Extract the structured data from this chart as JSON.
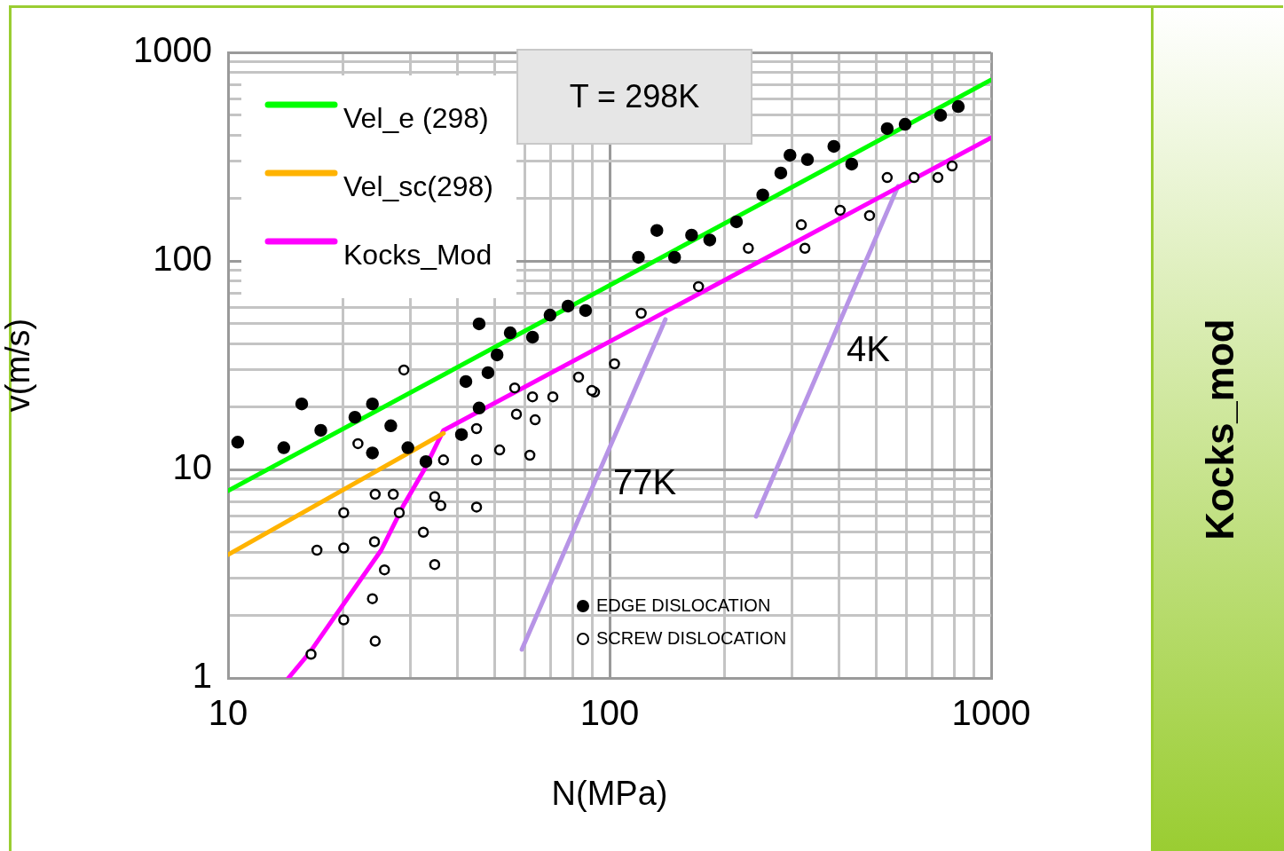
{
  "chart_data": {
    "type": "scatter",
    "xlabel": "N(MPa)",
    "ylabel": "v(m/s)",
    "log": "xy",
    "grid": true,
    "legend": "left",
    "xlim": [
      10,
      1000
    ],
    "ylim": [
      1,
      1000
    ],
    "xticks": [
      10,
      {
        "value": 20,
        "label": null
      },
      {
        "value": 30,
        "label": null
      },
      {
        "value": 40,
        "label": null
      },
      {
        "value": 50,
        "label": null
      },
      {
        "value": 60,
        "label": null
      },
      {
        "value": 70,
        "label": null
      },
      {
        "value": 80,
        "label": null
      },
      {
        "value": 90,
        "label": null
      },
      100,
      {
        "value": 200,
        "label": null
      },
      {
        "value": 300,
        "label": null
      },
      {
        "value": 400,
        "label": null
      },
      {
        "value": 500,
        "label": null
      },
      {
        "value": 600,
        "label": null
      },
      {
        "value": 700,
        "label": null
      },
      {
        "value": 800,
        "label": null
      },
      {
        "value": 900,
        "label": null
      },
      1000
    ],
    "yticks": [
      1,
      {
        "value": 2,
        "label": null
      },
      {
        "value": 3,
        "label": null
      },
      {
        "value": 4,
        "label": null
      },
      {
        "value": 5,
        "label": null
      },
      {
        "value": 6,
        "label": null
      },
      {
        "value": 7,
        "label": null
      },
      {
        "value": 8,
        "label": null
      },
      {
        "value": 9,
        "label": null
      },
      10,
      {
        "value": 20,
        "label": null
      },
      {
        "value": 30,
        "label": null
      },
      {
        "value": 40,
        "label": null
      },
      {
        "value": 50,
        "label": null
      },
      {
        "value": 60,
        "label": null
      },
      {
        "value": 70,
        "label": null
      },
      {
        "value": 80,
        "label": null
      },
      {
        "value": 90,
        "label": null
      },
      100,
      {
        "value": 200,
        "label": null
      },
      {
        "value": 300,
        "label": null
      },
      {
        "value": 400,
        "label": null
      },
      {
        "value": 500,
        "label": null
      },
      {
        "value": 600,
        "label": null
      },
      {
        "value": 700,
        "label": null
      },
      {
        "value": 800,
        "label": null
      },
      {
        "value": 900,
        "label": null
      },
      1000
    ],
    "annotations": [
      "T = 298K",
      "Kocks_mod"
    ],
    "series": [
      {
        "name": "EDGE DISLOCATION",
        "marker": "circle",
        "color": "#000000",
        "x": [
          10.6,
          14.0,
          15.6,
          17.5,
          21.5,
          23.9,
          26.7,
          23.9,
          29.6,
          33.0,
          40.9,
          45.5,
          42.0,
          48.0,
          50.7,
          54.9,
          45.5,
          62.8,
          69.8,
          77.8,
          86.5,
          119,
          133,
          148,
          164,
          183,
          215,
          252,
          281,
          297,
          330,
          387,
          431,
          534,
          595,
          737,
          820
        ],
        "values": [
          13.5,
          12.7,
          20.6,
          15.4,
          17.8,
          20.6,
          16.2,
          12.0,
          12.7,
          10.9,
          14.7,
          19.7,
          26.4,
          29.1,
          35.4,
          45.2,
          49.9,
          43.1,
          55.0,
          60.7,
          57.8,
          104,
          140,
          104,
          133,
          126,
          154,
          207,
          264,
          321,
          306,
          354,
          291,
          431,
          452,
          499,
          550
        ]
      },
      {
        "name": "SCREW DISLOCATION",
        "marker": "circle-open",
        "color": "#000000",
        "x": [
          28.9,
          82.9,
          91.3,
          56.4,
          62.8,
          71.0,
          57.0,
          63.8,
          44.8,
          21.9,
          36.7,
          44.8,
          51.5,
          61.8,
          24.3,
          27.1,
          34.8,
          20.1,
          28.1,
          36.1,
          44.8,
          32.5,
          24.2,
          17.1,
          20.1,
          25.7,
          34.8,
          23.9,
          20.1,
          24.3,
          16.5,
          121,
          171,
          231,
          318,
          402,
          480,
          534,
          628,
          725,
          790,
          89.8,
          103,
          325
        ],
        "values": [
          30.0,
          27.7,
          23.5,
          24.6,
          22.3,
          22.3,
          18.4,
          17.3,
          15.7,
          13.3,
          11.1,
          11.1,
          12.4,
          11.7,
          7.6,
          7.6,
          7.4,
          6.2,
          6.2,
          6.7,
          6.6,
          5.0,
          4.5,
          4.1,
          4.2,
          3.3,
          3.5,
          2.4,
          1.9,
          1.5,
          1.3,
          56.1,
          75.3,
          115,
          149,
          175,
          165,
          251,
          251,
          251,
          285,
          23.9,
          32.1,
          115
        ]
      },
      {
        "name": "Vel_e (298)",
        "type": "line",
        "color": "#00ff00",
        "x": [
          10,
          1000
        ],
        "values": [
          7.9,
          738
        ]
      },
      {
        "name": "Vel_sc(298)",
        "type": "line",
        "color": "#ffb300",
        "x": [
          10,
          36.7
        ],
        "values": [
          3.9,
          14.9
        ]
      },
      {
        "name": "Kocks_Mod",
        "type": "line",
        "color": "#ff00ff",
        "x": [
          14.4,
          16.4,
          22.1,
          25.2,
          28.8,
          32.6,
          36.7,
          1000
        ],
        "values": [
          1.0,
          1.33,
          2.91,
          4.1,
          6.7,
          9.9,
          15.4,
          390
        ]
      },
      {
        "name": "77K",
        "type": "line",
        "color": "#b794e6",
        "x": [
          58.9,
          140
        ],
        "values": [
          1.37,
          52.4
        ]
      },
      {
        "name": "4K",
        "type": "line",
        "color": "#b794e6",
        "x": [
          242,
          570
        ],
        "values": [
          5.95,
          228
        ]
      }
    ]
  }
}
